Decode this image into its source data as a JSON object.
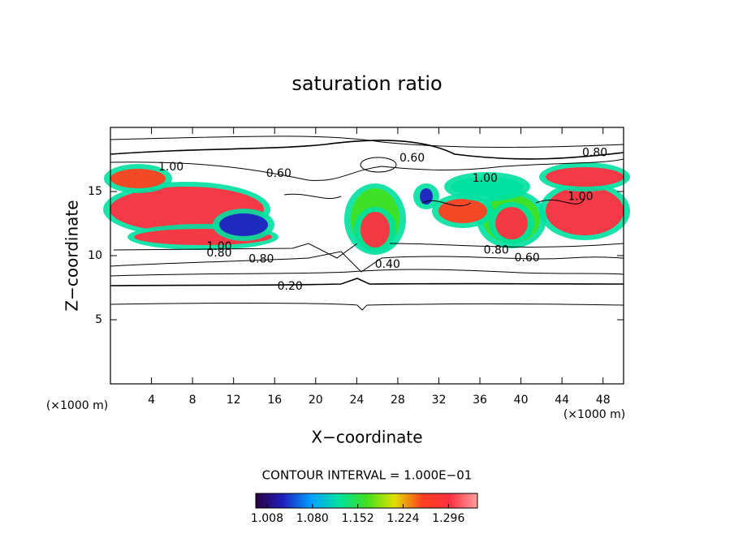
{
  "chart_data": {
    "type": "contour",
    "title": "saturation ratio",
    "x_label": "X−coordinate",
    "y_label": "Z−coordinate",
    "x_unit_label": "(×1000 m)",
    "y_unit_label": "(×1000 m)",
    "xlim": [
      0,
      50
    ],
    "ylim": [
      0,
      20
    ],
    "xticks": [
      4,
      8,
      12,
      16,
      20,
      24,
      28,
      32,
      36,
      40,
      44,
      48
    ],
    "yticks": [
      5,
      10,
      15
    ],
    "contour_interval_label": "CONTOUR INTERVAL = 1.000E−01",
    "contour_labels": [
      {
        "text": "1.00",
        "x": 5.9,
        "y": 16.9
      },
      {
        "text": "0.60",
        "x": 16.4,
        "y": 16.4
      },
      {
        "text": "0.60",
        "x": 29.4,
        "y": 17.6
      },
      {
        "text": "0.80",
        "x": 47.2,
        "y": 18.0
      },
      {
        "text": "1.00",
        "x": 36.5,
        "y": 16.0
      },
      {
        "text": "1.00",
        "x": 10.6,
        "y": 10.7
      },
      {
        "text": "0.80",
        "x": 10.6,
        "y": 10.2
      },
      {
        "text": "0.80",
        "x": 14.7,
        "y": 9.7
      },
      {
        "text": "0.40",
        "x": 27.0,
        "y": 9.3
      },
      {
        "text": "0.20",
        "x": 17.5,
        "y": 7.6
      },
      {
        "text": "0.80",
        "x": 37.6,
        "y": 10.4
      },
      {
        "text": "0.60",
        "x": 40.6,
        "y": 9.8
      },
      {
        "text": "1.00",
        "x": 45.8,
        "y": 14.6
      }
    ],
    "colormap": [
      "#2a0040",
      "#2020c0",
      "#00a0ff",
      "#00e0a0",
      "#40e020",
      "#e0e000",
      "#ff4020",
      "#ff3040",
      "#ffa0a0"
    ],
    "clim": [
      0.99,
      1.342
    ],
    "cticks": [
      1.008,
      {
        "value": 1.08,
        "label": "1.080"
      },
      1.152,
      1.224,
      1.296
    ]
  }
}
